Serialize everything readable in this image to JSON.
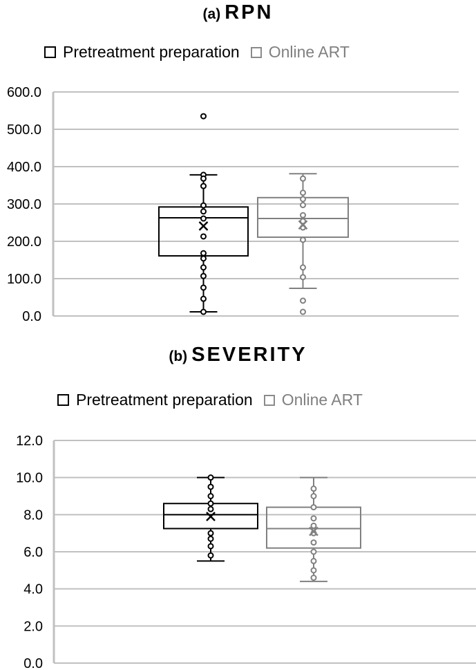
{
  "charts": [
    {
      "id": "rpn",
      "title_prefix": "(a)",
      "title_main": "RPN",
      "legend": [
        {
          "label": "Pretreatment preparation",
          "color": "#000000"
        },
        {
          "label": "Online ART",
          "color": "#808080"
        }
      ],
      "y_ticks": [
        "0.0",
        "100.0",
        "200.0",
        "300.0",
        "400.0",
        "500.0",
        "600.0"
      ]
    },
    {
      "id": "severity",
      "title_prefix": "(b)",
      "title_main": "SEVERITY",
      "legend": [
        {
          "label": "Pretreatment preparation",
          "color": "#000000"
        },
        {
          "label": "Online ART",
          "color": "#808080"
        }
      ],
      "y_ticks": [
        "0.0",
        "2.0",
        "4.0",
        "6.0",
        "8.0",
        "10.0",
        "12.0"
      ]
    }
  ],
  "chart_data": [
    {
      "type": "box",
      "title": "(a) RPN",
      "xlabel": "",
      "ylabel": "",
      "ylim": [
        0,
        600
      ],
      "y_tick_step": 100,
      "grid": true,
      "legend_position": "top",
      "series": [
        {
          "name": "Pretreatment preparation",
          "color": "#000000",
          "whisker_low": 11,
          "q1": 161,
          "median": 263,
          "q3": 292,
          "whisker_high": 378,
          "mean": 241,
          "points": [
            378,
            368,
            348,
            296,
            280,
            261,
            213,
            168,
            154,
            130,
            107,
            76,
            46,
            11
          ],
          "outliers": [
            535
          ]
        },
        {
          "name": "Online ART",
          "color": "#808080",
          "whisker_low": 74,
          "q1": 211,
          "median": 261,
          "q3": 317,
          "whisker_high": 381,
          "mean": 244,
          "points": [
            368,
            330,
            313,
            297,
            270,
            254,
            237,
            204,
            130,
            104
          ],
          "outliers": [
            41,
            11
          ]
        }
      ]
    },
    {
      "type": "box",
      "title": "(b) SEVERITY",
      "xlabel": "",
      "ylabel": "",
      "ylim": [
        0,
        12
      ],
      "y_tick_step": 2,
      "grid": true,
      "legend_position": "top",
      "series": [
        {
          "name": "Pretreatment preparation",
          "color": "#000000",
          "whisker_low": 5.5,
          "q1": 7.25,
          "median": 8.0,
          "q3": 8.6,
          "whisker_high": 10.0,
          "mean": 7.9,
          "points": [
            10.0,
            9.5,
            9.0,
            8.6,
            8.3,
            7.0,
            6.7,
            6.3,
            5.8
          ],
          "outliers": []
        },
        {
          "name": "Online ART",
          "color": "#808080",
          "whisker_low": 4.4,
          "q1": 6.2,
          "median": 7.25,
          "q3": 8.4,
          "whisker_high": 10.0,
          "mean": 7.1,
          "points": [
            9.4,
            9.0,
            8.4,
            7.8,
            7.4,
            7.0,
            6.5,
            6.0,
            5.5,
            5.0,
            4.6
          ],
          "outliers": []
        }
      ]
    }
  ]
}
